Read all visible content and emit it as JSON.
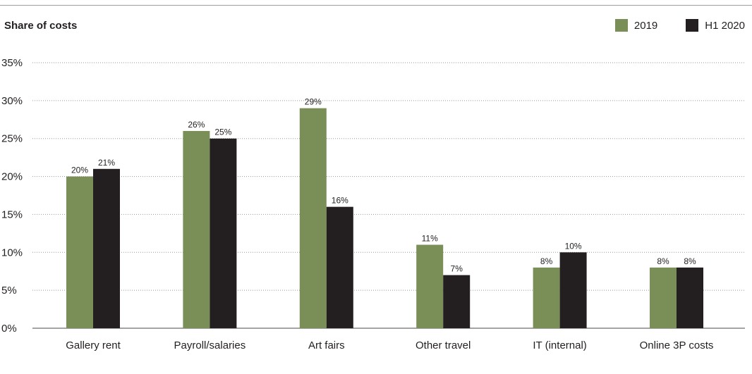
{
  "chart_data": {
    "type": "bar",
    "title": "Share of costs",
    "categories": [
      "Gallery rent",
      "Payroll/salaries",
      "Art fairs",
      "Other travel",
      "IT (internal)",
      "Online 3P costs"
    ],
    "series": [
      {
        "name": "2019",
        "color": "#7a8f57",
        "values": [
          20,
          26,
          29,
          11,
          8,
          8
        ]
      },
      {
        "name": "H1 2020",
        "color": "#231f20",
        "values": [
          21,
          25,
          16,
          7,
          10,
          8
        ]
      }
    ],
    "y_ticks": [
      0,
      5,
      10,
      15,
      20,
      25,
      30,
      35
    ],
    "ylim": [
      0,
      35
    ],
    "value_suffix": "%",
    "grid": "dotted horizontal",
    "legend_position": "top-right"
  }
}
